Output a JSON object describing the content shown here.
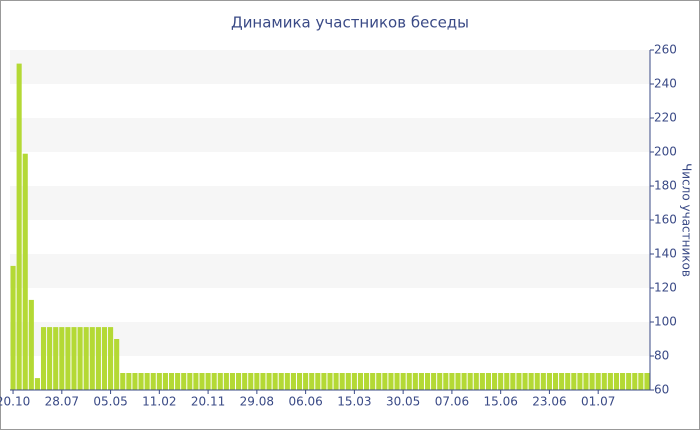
{
  "chart_data": {
    "type": "bar",
    "title": "Динамика участников беседы",
    "y_label": "Число участников",
    "categories": [
      "20.10",
      null,
      null,
      null,
      null,
      null,
      null,
      null,
      "28.07",
      null,
      null,
      null,
      null,
      null,
      null,
      null,
      "05.05",
      null,
      null,
      null,
      null,
      null,
      null,
      null,
      "11.02",
      null,
      null,
      null,
      null,
      null,
      null,
      null,
      "20.11",
      null,
      null,
      null,
      null,
      null,
      null,
      null,
      "29.08",
      null,
      null,
      null,
      null,
      null,
      null,
      null,
      "06.06",
      null,
      null,
      null,
      null,
      null,
      null,
      null,
      "15.03",
      null,
      null,
      null,
      null,
      null,
      null,
      null,
      "30.05",
      null,
      null,
      null,
      null,
      null,
      null,
      null,
      "07.06",
      null,
      null,
      null,
      null,
      null,
      null,
      null,
      "15.06",
      null,
      null,
      null,
      null,
      null,
      null,
      null,
      "23.06",
      null,
      null,
      null,
      null,
      null,
      null,
      null,
      "01.07",
      null,
      null,
      null,
      null,
      null,
      null,
      null,
      null
    ],
    "values": [
      133,
      252,
      199,
      113,
      67,
      97,
      97,
      97,
      97,
      97,
      97,
      97,
      97,
      97,
      97,
      97,
      97,
      90,
      70,
      70,
      70,
      70,
      70,
      70,
      70,
      70,
      70,
      70,
      70,
      70,
      70,
      70,
      70,
      70,
      70,
      70,
      70,
      70,
      70,
      70,
      70,
      70,
      70,
      70,
      70,
      70,
      70,
      70,
      70,
      70,
      70,
      70,
      70,
      70,
      70,
      70,
      70,
      70,
      70,
      70,
      70,
      70,
      70,
      70,
      70,
      70,
      70,
      70,
      70,
      70,
      70,
      70,
      70,
      70,
      70,
      70,
      70,
      70,
      70,
      70,
      70,
      70,
      70,
      70,
      70,
      70,
      70,
      70,
      70,
      70,
      70,
      70,
      70,
      70,
      70,
      70,
      70,
      70,
      70,
      70,
      70,
      70,
      70,
      70,
      70
    ],
    "color": "#b4d935",
    "ylim": [
      60,
      260
    ],
    "yticks": [
      60,
      80,
      100,
      120,
      140,
      160,
      180,
      200,
      220,
      240,
      260
    ],
    "y_axis_side": "right",
    "grid": "bands"
  }
}
